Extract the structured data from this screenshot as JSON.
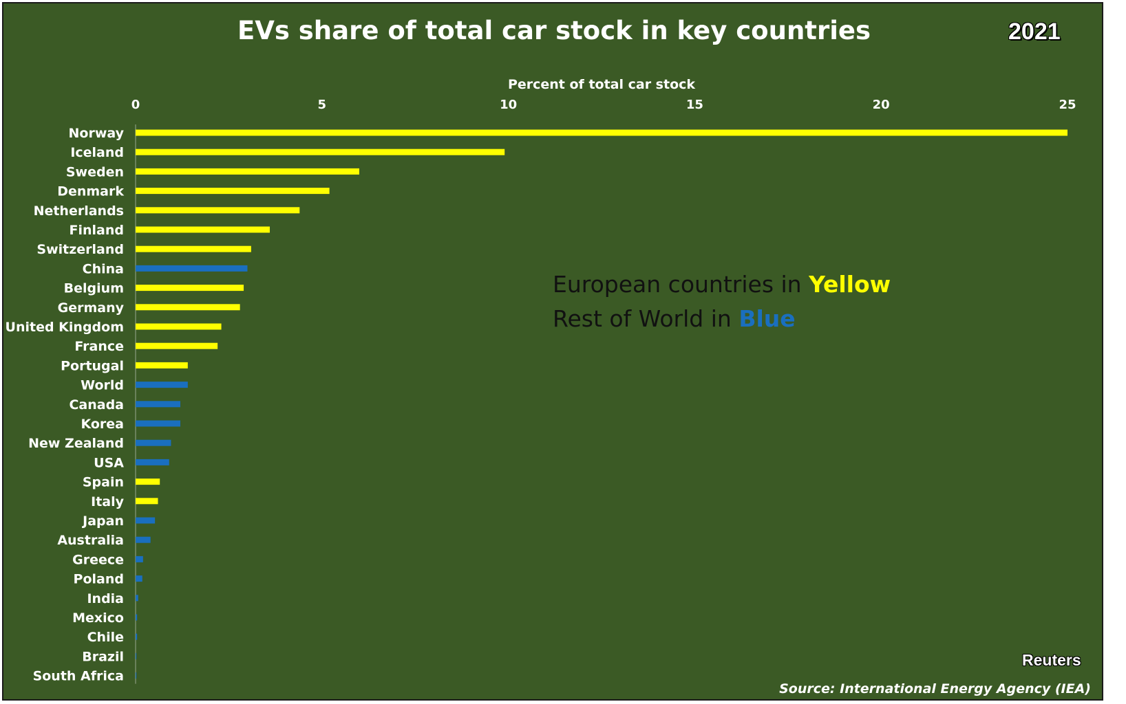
{
  "title": "EVs share of total car stock in key countries",
  "year_badge": "2021",
  "legend": {
    "line1_prefix": "European countries in ",
    "line1_color_word": "Yellow",
    "line2_prefix": "Rest of World in ",
    "line2_color_word": "Blue"
  },
  "credit": "Reuters",
  "source": "Source: International Energy Agency (IEA)",
  "colors": {
    "european": "#ffff00",
    "rest_of_world": "#1a6fbf",
    "background": "#3b5a25"
  },
  "chart_data": {
    "type": "bar",
    "orientation": "horizontal",
    "xlabel": "Percent of total car stock",
    "xlim": [
      0,
      25
    ],
    "xticks": [
      0,
      5,
      10,
      15,
      20,
      25
    ],
    "axis_position": "top",
    "grid": false,
    "categories": [
      "Norway",
      "Iceland",
      "Sweden",
      "Denmark",
      "Netherlands",
      "Finland",
      "Switzerland",
      "China",
      "Belgium",
      "Germany",
      "United Kingdom",
      "France",
      "Portugal",
      "World",
      "Canada",
      "Korea",
      "New Zealand",
      "USA",
      "Spain",
      "Italy",
      "Japan",
      "Australia",
      "Greece",
      "Poland",
      "India",
      "Mexico",
      "Chile",
      "Brazil",
      "South Africa"
    ],
    "values": [
      25.0,
      9.9,
      6.0,
      5.2,
      4.4,
      3.6,
      3.1,
      3.0,
      2.9,
      2.8,
      2.3,
      2.2,
      1.4,
      1.4,
      1.2,
      1.2,
      0.95,
      0.9,
      0.65,
      0.6,
      0.52,
      0.4,
      0.2,
      0.18,
      0.07,
      0.04,
      0.04,
      0.02,
      0.02
    ],
    "group": [
      "european",
      "european",
      "european",
      "european",
      "european",
      "european",
      "european",
      "rest_of_world",
      "european",
      "european",
      "european",
      "european",
      "european",
      "rest_of_world",
      "rest_of_world",
      "rest_of_world",
      "rest_of_world",
      "rest_of_world",
      "european",
      "european",
      "rest_of_world",
      "rest_of_world",
      "rest_of_world",
      "rest_of_world",
      "rest_of_world",
      "rest_of_world",
      "rest_of_world",
      "rest_of_world",
      "rest_of_world"
    ]
  }
}
